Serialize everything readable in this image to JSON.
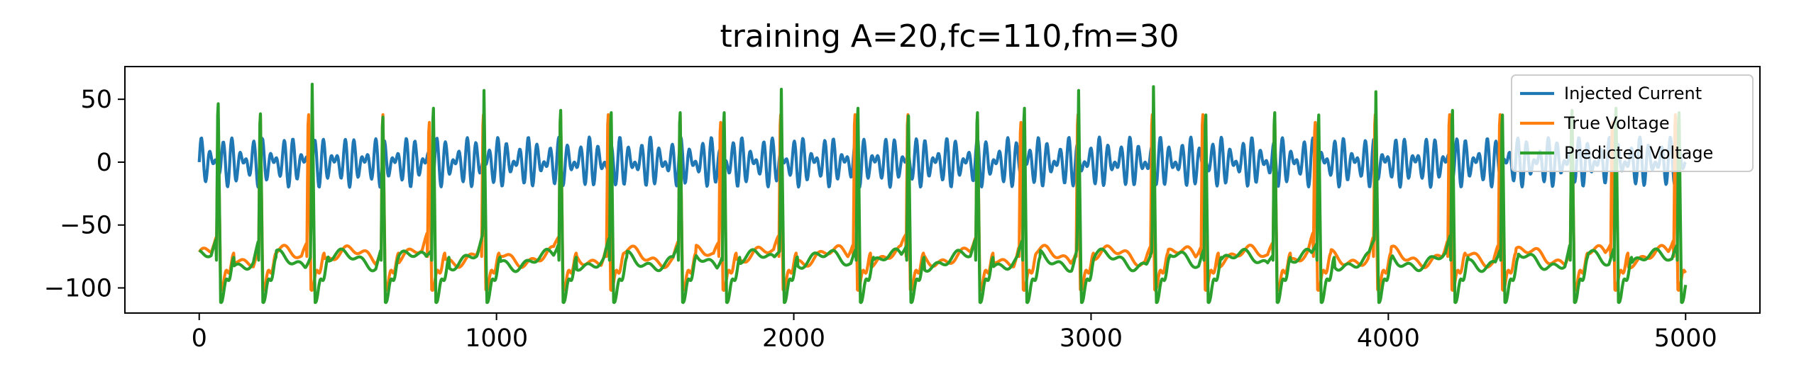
{
  "chart_data": {
    "type": "line",
    "title": "training A=20,fc=110,fm=30",
    "xlabel": "",
    "ylabel": "",
    "xlim": [
      -250,
      5250
    ],
    "ylim": [
      -120,
      76
    ],
    "xticks": [
      0,
      1000,
      2000,
      3000,
      4000,
      5000
    ],
    "yticks": [
      50,
      0,
      -50,
      -100
    ],
    "x_tick_labels": [
      "0",
      "1000",
      "2000",
      "3000",
      "4000",
      "5000"
    ],
    "y_tick_labels": [
      "50",
      "0",
      "−50",
      "−100"
    ],
    "grid": false,
    "legend_position": "upper-right",
    "x": [
      0,
      80,
      200,
      260,
      380,
      420,
      500,
      600,
      650,
      780,
      850,
      950,
      1100,
      1180,
      1210,
      1300,
      1380,
      1450,
      1500,
      1600,
      1630,
      1740,
      1780,
      1950,
      2000,
      2200,
      2250,
      2380,
      2500,
      2600,
      2750,
      2780,
      2900,
      3000,
      3100,
      3200,
      3250,
      3380,
      3500,
      3600,
      3630,
      3760,
      3850,
      3950,
      4100,
      4200,
      4240,
      4380,
      4420,
      4500,
      4600,
      4760,
      4850,
      4950,
      5000
    ],
    "series": [
      {
        "name": "Injected Current",
        "color": "#1f77b4",
        "kind": "am-sine",
        "amplitude": 20,
        "fc": 110,
        "fm": 30
      },
      {
        "name": "True Voltage",
        "color": "#ff7f0e",
        "spike_times": [
          58,
          200,
          362,
          612,
          768,
          950,
          1210,
          1370,
          1612,
          1748,
          1950,
          2200,
          2378,
          2612,
          2758,
          2950,
          3200,
          3370,
          3612,
          3748,
          3950,
          4200,
          4370,
          4612,
          4748,
          4960
        ],
        "spike_peaks": [
          50,
          55,
          55,
          55,
          48,
          55,
          55,
          55,
          55,
          48,
          55,
          55,
          55,
          55,
          48,
          55,
          55,
          55,
          55,
          48,
          55,
          55,
          55,
          55,
          48,
          55
        ],
        "resting": -75,
        "trough": -100
      },
      {
        "name": "Predicted Voltage",
        "color": "#2ca02c",
        "spike_times": [
          58,
          200,
          375,
          612,
          782,
          953,
          1210,
          1380,
          1612,
          1760,
          1953,
          2210,
          2380,
          2612,
          2770,
          2953,
          3205,
          3380,
          3612,
          3760,
          3953,
          4210,
          4378,
          4612,
          4760,
          4972
        ],
        "spike_peaks": [
          66,
          57,
          62,
          54,
          62,
          57,
          60,
          58,
          58,
          58,
          58,
          62,
          55,
          58,
          62,
          57,
          60,
          56,
          58,
          56,
          56,
          60,
          56,
          60,
          62,
          58
        ],
        "resting": -78,
        "trough": -110
      }
    ]
  }
}
